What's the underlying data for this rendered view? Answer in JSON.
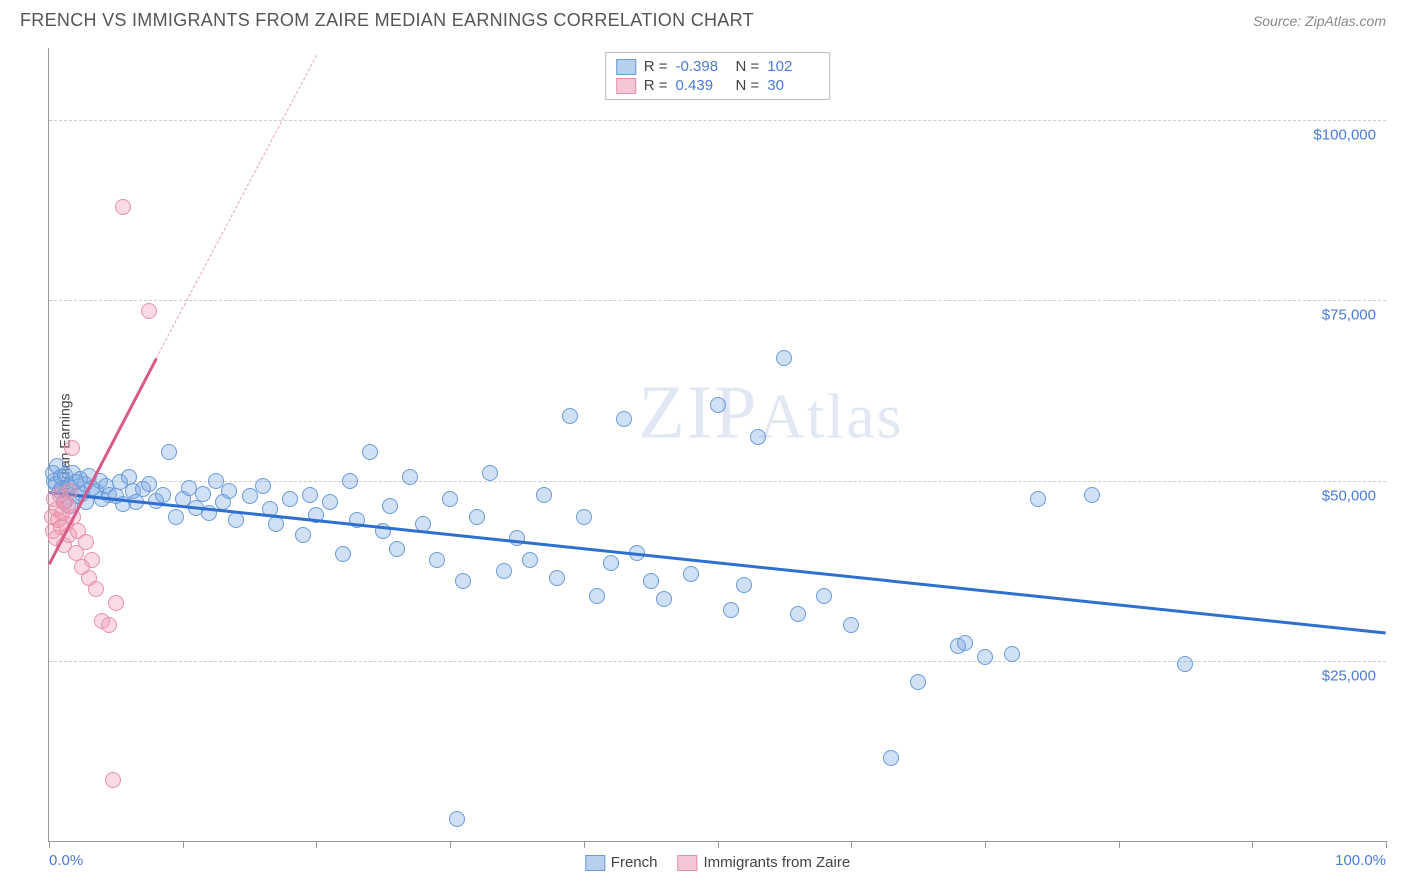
{
  "chart": {
    "type": "scatter",
    "title": "FRENCH VS IMMIGRANTS FROM ZAIRE MEDIAN EARNINGS CORRELATION CHART",
    "source_label": "Source: ",
    "source_name": "ZipAtlas.com",
    "y_axis_label": "Median Earnings",
    "watermark": "ZIPAtlas",
    "background_color": "#ffffff",
    "grid_color": "#cccccc",
    "axis_color": "#999999",
    "tick_label_color": "#4a7bd8",
    "text_color": "#444444",
    "xlim": [
      0,
      100
    ],
    "ylim": [
      0,
      110000
    ],
    "y_ticks": [
      {
        "value": 25000,
        "label": "$25,000"
      },
      {
        "value": 50000,
        "label": "$50,000"
      },
      {
        "value": 75000,
        "label": "$75,000"
      },
      {
        "value": 100000,
        "label": "$100,000"
      }
    ],
    "x_ticks": [
      {
        "value": 0,
        "label": "0.0%",
        "align": "left"
      },
      {
        "value": 10,
        "label": ""
      },
      {
        "value": 20,
        "label": ""
      },
      {
        "value": 30,
        "label": ""
      },
      {
        "value": 40,
        "label": ""
      },
      {
        "value": 50,
        "label": ""
      },
      {
        "value": 60,
        "label": ""
      },
      {
        "value": 70,
        "label": ""
      },
      {
        "value": 80,
        "label": ""
      },
      {
        "value": 90,
        "label": ""
      },
      {
        "value": 100,
        "label": "100.0%",
        "align": "right"
      }
    ],
    "series": [
      {
        "name": "French",
        "fill_color": "rgba(120,165,225,0.35)",
        "stroke_color": "#6a9bd8",
        "legend_fill": "#b8d0ef",
        "legend_stroke": "#6a9bd8",
        "marker_radius": 8,
        "correlation_R": "-0.398",
        "correlation_N": "102",
        "trend": {
          "x1": 0,
          "y1": 48500,
          "x2": 100,
          "y2": 29000,
          "color": "#2f6fd0",
          "width": 2.5,
          "dashed": false
        },
        "points": [
          [
            0.3,
            51000
          ],
          [
            0.4,
            50000
          ],
          [
            0.5,
            49500
          ],
          [
            0.6,
            52000
          ],
          [
            0.8,
            48500
          ],
          [
            0.9,
            50500
          ],
          [
            1.0,
            49000
          ],
          [
            1.1,
            47000
          ],
          [
            1.2,
            50800
          ],
          [
            1.3,
            48800
          ],
          [
            1.5,
            49200
          ],
          [
            1.6,
            46500
          ],
          [
            1.8,
            51000
          ],
          [
            2.0,
            49800
          ],
          [
            2.1,
            47800
          ],
          [
            2.3,
            50200
          ],
          [
            2.5,
            48200
          ],
          [
            2.7,
            49500
          ],
          [
            2.8,
            47000
          ],
          [
            3.0,
            50600
          ],
          [
            3.2,
            49000
          ],
          [
            3.5,
            48500
          ],
          [
            3.8,
            50000
          ],
          [
            4.0,
            47500
          ],
          [
            4.3,
            49200
          ],
          [
            4.5,
            48000
          ],
          [
            5.0,
            47800
          ],
          [
            5.3,
            49800
          ],
          [
            5.5,
            46800
          ],
          [
            6.0,
            50500
          ],
          [
            6.3,
            48500
          ],
          [
            6.5,
            47000
          ],
          [
            7.0,
            48800
          ],
          [
            7.5,
            49500
          ],
          [
            8.0,
            47200
          ],
          [
            8.5,
            48000
          ],
          [
            9.0,
            54000
          ],
          [
            9.5,
            45000
          ],
          [
            10.0,
            47500
          ],
          [
            10.5,
            49000
          ],
          [
            11.0,
            46200
          ],
          [
            11.5,
            48200
          ],
          [
            12.0,
            45500
          ],
          [
            12.5,
            50000
          ],
          [
            13.0,
            47000
          ],
          [
            13.5,
            48500
          ],
          [
            14.0,
            44500
          ],
          [
            15.0,
            47800
          ],
          [
            16.0,
            49200
          ],
          [
            16.5,
            46000
          ],
          [
            17.0,
            44000
          ],
          [
            18.0,
            47500
          ],
          [
            19.0,
            42500
          ],
          [
            19.5,
            48000
          ],
          [
            20.0,
            45200
          ],
          [
            21.0,
            47000
          ],
          [
            22.0,
            39800
          ],
          [
            22.5,
            50000
          ],
          [
            23.0,
            44500
          ],
          [
            24.0,
            54000
          ],
          [
            25.0,
            43000
          ],
          [
            25.5,
            46500
          ],
          [
            26.0,
            40500
          ],
          [
            27.0,
            50500
          ],
          [
            28.0,
            44000
          ],
          [
            29.0,
            39000
          ],
          [
            30.0,
            47500
          ],
          [
            31.0,
            36000
          ],
          [
            32.0,
            45000
          ],
          [
            33.0,
            51000
          ],
          [
            34.0,
            37500
          ],
          [
            35.0,
            42000
          ],
          [
            36.0,
            39000
          ],
          [
            37.0,
            48000
          ],
          [
            38.0,
            36500
          ],
          [
            39.0,
            59000
          ],
          [
            40.0,
            45000
          ],
          [
            41.0,
            34000
          ],
          [
            42.0,
            38500
          ],
          [
            43.0,
            58500
          ],
          [
            44.0,
            40000
          ],
          [
            45.0,
            36000
          ],
          [
            46.0,
            33500
          ],
          [
            48.0,
            37000
          ],
          [
            50.0,
            60500
          ],
          [
            51.0,
            32000
          ],
          [
            52.0,
            35500
          ],
          [
            53.0,
            56000
          ],
          [
            55.0,
            67000
          ],
          [
            56.0,
            31500
          ],
          [
            58.0,
            34000
          ],
          [
            60.0,
            30000
          ],
          [
            63.0,
            11500
          ],
          [
            65.0,
            22000
          ],
          [
            68.0,
            27000
          ],
          [
            70.0,
            25500
          ],
          [
            74.0,
            47500
          ],
          [
            78.0,
            48000
          ],
          [
            85.0,
            24500
          ],
          [
            30.5,
            3000
          ],
          [
            68.5,
            27500
          ],
          [
            72.0,
            26000
          ]
        ]
      },
      {
        "name": "Immigrants from Zaire",
        "fill_color": "rgba(240,150,175,0.35)",
        "stroke_color": "#e593ad",
        "legend_fill": "#f5c6d4",
        "legend_stroke": "#e593ad",
        "marker_radius": 8,
        "correlation_R": "0.439",
        "correlation_N": "30",
        "trend_solid": {
          "x1": 0,
          "y1": 38500,
          "x2": 8,
          "y2": 67000,
          "color": "#d85a88",
          "width": 2.5,
          "dashed": false
        },
        "trend_dash": {
          "x1": 8,
          "y1": 67000,
          "x2": 20,
          "y2": 109000,
          "color": "#e8a0b8",
          "width": 1.5,
          "dashed": true
        },
        "points": [
          [
            0.2,
            45000
          ],
          [
            0.3,
            43000
          ],
          [
            0.4,
            47500
          ],
          [
            0.5,
            42000
          ],
          [
            0.6,
            46000
          ],
          [
            0.7,
            44500
          ],
          [
            0.8,
            48000
          ],
          [
            0.9,
            43500
          ],
          [
            1.0,
            45500
          ],
          [
            1.1,
            41000
          ],
          [
            1.2,
            47000
          ],
          [
            1.3,
            44000
          ],
          [
            1.4,
            46500
          ],
          [
            1.5,
            42500
          ],
          [
            1.6,
            48500
          ],
          [
            1.8,
            45000
          ],
          [
            2.0,
            40000
          ],
          [
            2.2,
            43000
          ],
          [
            2.5,
            38000
          ],
          [
            2.8,
            41500
          ],
          [
            3.0,
            36500
          ],
          [
            3.2,
            39000
          ],
          [
            3.5,
            35000
          ],
          [
            4.0,
            30500
          ],
          [
            4.5,
            30000
          ],
          [
            5.0,
            33000
          ],
          [
            5.5,
            88000
          ],
          [
            7.5,
            73500
          ],
          [
            4.8,
            8500
          ],
          [
            1.7,
            54500
          ]
        ]
      }
    ],
    "legend_top": {
      "label_R": "R =",
      "label_N": "N ="
    },
    "legend_bottom": [
      {
        "label": "French",
        "series": 0
      },
      {
        "label": "Immigrants from Zaire",
        "series": 1
      }
    ]
  }
}
